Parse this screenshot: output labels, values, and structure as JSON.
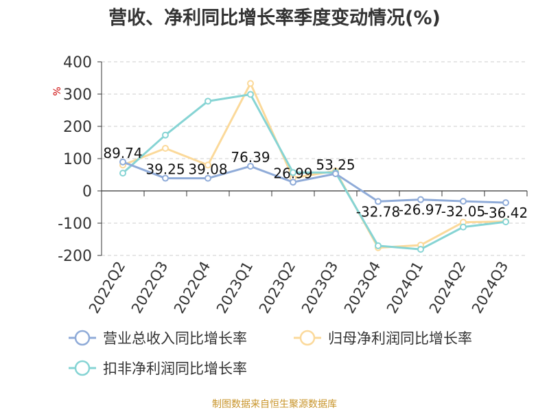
{
  "title": "营收、净利同比增长率季度变动情况(%)",
  "source": "制图数据来自恒生聚源数据库",
  "chart_data": {
    "type": "line",
    "ylabel": "%",
    "ylim": [
      -200,
      400
    ],
    "yticks": [
      -200,
      -100,
      0,
      100,
      200,
      300,
      400
    ],
    "grid": true,
    "legend_position": "bottom",
    "categories": [
      "2022Q2",
      "2022Q3",
      "2022Q4",
      "2023Q1",
      "2023Q2",
      "2023Q3",
      "2023Q4",
      "2024Q1",
      "2024Q2",
      "2024Q3"
    ],
    "series": [
      {
        "name": "营业总收入同比增长率",
        "color": "#8fabd8",
        "values": [
          89.74,
          39.25,
          39.08,
          76.39,
          26.99,
          53.25,
          -32.78,
          -26.97,
          -32.05,
          -36.42
        ],
        "labels": [
          "89.74",
          "39.25",
          "39.08",
          "76.39",
          "26.99",
          "53.25",
          "-32.78",
          "-26.97",
          "-32.05",
          "-36.42"
        ]
      },
      {
        "name": "归母净利润同比增长率",
        "color": "#fbd99a",
        "values": [
          80,
          132,
          80,
          333,
          40,
          62,
          -176,
          -168,
          -97,
          -95
        ]
      },
      {
        "name": "扣非净利润同比增长率",
        "color": "#86d4d4",
        "values": [
          55,
          173,
          278,
          299,
          57,
          57,
          -170,
          -181,
          -112,
          -96
        ]
      }
    ]
  }
}
